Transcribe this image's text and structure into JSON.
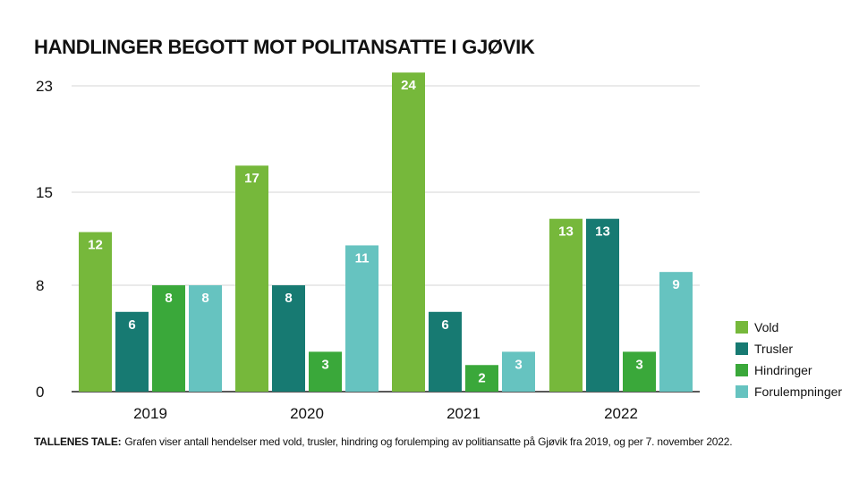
{
  "chart_data": {
    "type": "bar",
    "title": "HANDLINGER BEGOTT MOT POLITANSATTE I GJØVIK",
    "categories": [
      "2019",
      "2020",
      "2021",
      "2022"
    ],
    "series": [
      {
        "name": "Vold",
        "color": "#76b83b",
        "values": [
          12,
          17,
          24,
          13
        ]
      },
      {
        "name": "Trusler",
        "color": "#177a72",
        "values": [
          6,
          8,
          6,
          13
        ]
      },
      {
        "name": "Hindringer",
        "color": "#3aa83a",
        "values": [
          8,
          3,
          2,
          3
        ]
      },
      {
        "name": "Forulempninger",
        "color": "#66c3c0",
        "values": [
          8,
          11,
          3,
          9
        ]
      }
    ],
    "yticks": [
      0,
      8,
      15,
      23
    ],
    "ylim": [
      0,
      24
    ],
    "grid": true,
    "legend": "right-bottom",
    "xlabel": "",
    "ylabel": ""
  },
  "note": {
    "label": "TALLENES TALE:",
    "text": "Grafen viser antall hendelser med vold, trusler, hindring og forulemping av politiansatte på Gjøvik fra 2019, og per 7. november 2022."
  }
}
